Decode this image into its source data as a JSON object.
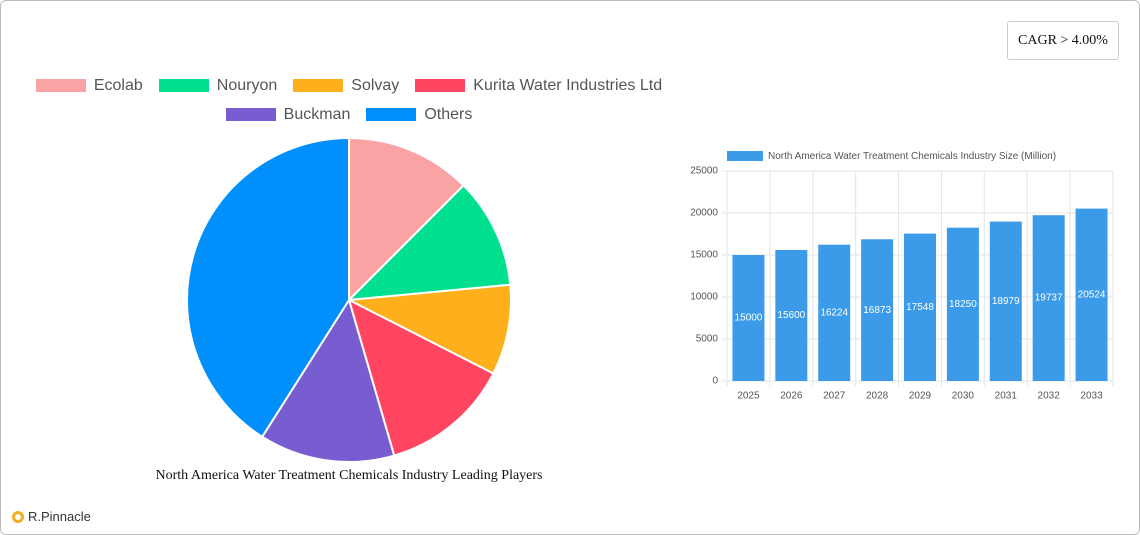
{
  "badge": "CAGR > 4.00%",
  "brand": "R.Pinnacle",
  "chart_data": [
    {
      "type": "pie",
      "title": "North America Water Treatment Chemicals Industry Leading Players",
      "categories": [
        "Ecolab",
        "Nouryon",
        "Solvay",
        "Kurita Water Industries Ltd",
        "Buckman",
        "Others"
      ],
      "values": [
        12.5,
        11,
        9,
        13,
        13.5,
        41
      ],
      "colors": [
        "#f9a3a4",
        "#00e08f",
        "#fdb01c",
        "#ff4560",
        "#775dd0",
        "#008ffb"
      ],
      "legend": "top"
    },
    {
      "type": "bar",
      "categories": [
        "2025",
        "2026",
        "2027",
        "2028",
        "2029",
        "2030",
        "2031",
        "2032",
        "2033"
      ],
      "series": [
        {
          "name": "North America Water Treatment Chemicals Industry Size (Million)",
          "color": "#3b9be8",
          "values": [
            15000,
            15600,
            16224,
            16873,
            17548,
            18250,
            18979,
            19737,
            20524
          ]
        }
      ],
      "ylim": [
        0,
        25000
      ],
      "yticks": [
        0,
        5000,
        10000,
        15000,
        20000,
        25000
      ],
      "grid": true,
      "legend": "top"
    }
  ]
}
